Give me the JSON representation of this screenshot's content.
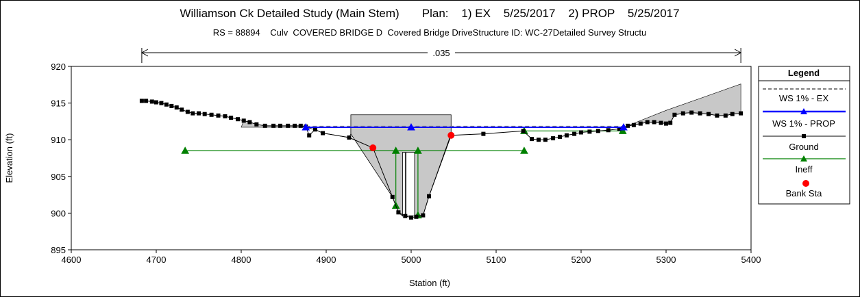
{
  "chart_data": {
    "type": "line",
    "title": "Williamson Ck Detailed Study (Main Stem)       Plan:    1) EX    5/25/2017    2) PROP    5/25/2017",
    "subtitle": "RS = 88894    Culv  COVERED BRIDGE D  Covered Bridge DriveStructure ID: WC-27Detailed Survey Structu",
    "xlabel": "Station (ft)",
    "ylabel": "Elevation (ft)",
    "xlim": [
      4600,
      5400
    ],
    "ylim": [
      895,
      920
    ],
    "xticks": [
      "4600",
      "4700",
      "4800",
      "4900",
      "5000",
      "5100",
      "5200",
      "5300",
      "5400"
    ],
    "yticks": [
      "895",
      "900",
      "905",
      "910",
      "915",
      "920"
    ],
    "grid": false,
    "legend_position": "right",
    "legend_title": "Legend",
    "legend": [
      "WS 1% - EX",
      "WS 1% - PROP",
      "Ground",
      "Ineff",
      "Bank Sta"
    ],
    "colors": {
      "ws_ex": "#7f7f7f",
      "ws_prop": "#0000ff",
      "ground": "#000000",
      "ineff": "#008000",
      "bank": "#ff0000",
      "fill": "#c8c8c8"
    },
    "annotation": {
      "text": ".035",
      "x_start": 4683,
      "x_end": 5388
    },
    "series": [
      {
        "name": "WS 1% - EX",
        "type": "line",
        "style": "dashed",
        "x": [
          4876,
          5000,
          5250
        ],
        "y": [
          911.8,
          911.8,
          911.8
        ]
      },
      {
        "name": "WS 1% - PROP",
        "type": "line",
        "x": [
          4876,
          5000,
          5250
        ],
        "y": [
          911.7,
          911.7,
          911.7
        ]
      },
      {
        "name": "Ground",
        "type": "line",
        "x": [
          4683,
          4688,
          4695,
          4700,
          4706,
          4712,
          4718,
          4724,
          4730,
          4737,
          4743,
          4750,
          4757,
          4765,
          4773,
          4781,
          4788,
          4796,
          4803,
          4810,
          4818,
          4828,
          4838,
          4846,
          4855,
          4863,
          4870,
          4876,
          4880,
          4887,
          4896,
          4927,
          4955,
          4978,
          4985,
          4993,
          5000,
          5006,
          5014,
          5021,
          5047,
          5085,
          5132,
          5142,
          5150,
          5158,
          5167,
          5175,
          5183,
          5192,
          5200,
          5210,
          5220,
          5232,
          5245,
          5255,
          5262,
          5270,
          5278,
          5286,
          5294,
          5300,
          5305,
          5310,
          5320,
          5330,
          5340,
          5350,
          5360,
          5370,
          5378,
          5388
        ],
        "y": [
          915.3,
          915.3,
          915.2,
          915.1,
          915.0,
          914.8,
          914.6,
          914.4,
          914.1,
          913.8,
          913.6,
          913.6,
          913.5,
          913.4,
          913.3,
          913.2,
          913.0,
          912.8,
          912.6,
          912.4,
          912.1,
          911.9,
          911.9,
          911.9,
          911.9,
          911.9,
          911.9,
          911.8,
          910.6,
          911.4,
          910.9,
          910.3,
          908.9,
          902.2,
          900.1,
          899.6,
          899.4,
          899.5,
          899.7,
          902.3,
          910.6,
          910.8,
          911.2,
          910.1,
          910.0,
          910.0,
          910.2,
          910.4,
          910.6,
          910.8,
          911.0,
          911.1,
          911.2,
          911.3,
          911.5,
          911.9,
          912.0,
          912.2,
          912.4,
          912.4,
          912.3,
          912.2,
          912.3,
          913.4,
          913.6,
          913.7,
          913.6,
          913.5,
          913.3,
          913.3,
          913.5,
          913.6
        ]
      },
      {
        "name": "Ineff",
        "type": "line",
        "segments": [
          {
            "x": [
              4734,
              5133
            ],
            "y": [
              908.5,
              908.5
            ]
          },
          {
            "x": [
              4982,
              4982
            ],
            "y": [
              908.5,
              901.0
            ]
          },
          {
            "x": [
              5008,
              5008
            ],
            "y": [
              908.5,
              899.7
            ]
          },
          {
            "x": [
              5133,
              5249
            ],
            "y": [
              911.2,
              911.2
            ]
          }
        ]
      },
      {
        "name": "Bank Sta",
        "type": "scatter",
        "x": [
          4955,
          5047
        ],
        "y": [
          908.9,
          910.6
        ]
      }
    ],
    "culvert": {
      "deck_top": 913.4,
      "deck_bottom": 910.8,
      "deck_x": [
        4929,
        5047
      ],
      "pier_x": [
        4990,
        4993
      ],
      "pier_bottom": 899.6
    }
  }
}
